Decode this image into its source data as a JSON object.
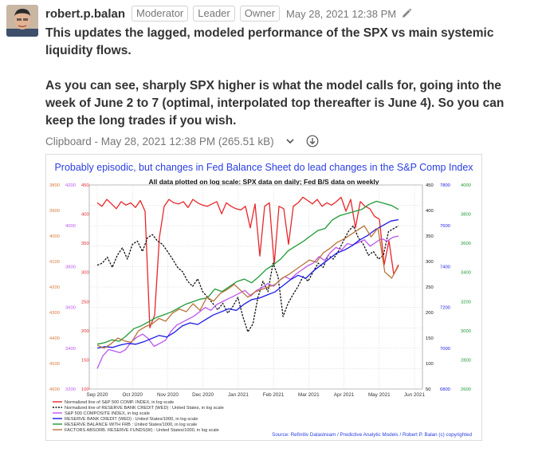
{
  "message": {
    "sender": "robert.p.balan",
    "badges": [
      "Moderator",
      "Leader",
      "Owner"
    ],
    "timestamp": "May 28, 2021 12:38 PM",
    "edit_icon": "pencil-icon",
    "paragraphs": [
      "This updates the lagged, modeled performance of the SPX vs main systemic liquidity flows.",
      "As you can see, sharply SPX higher is what the model calls for, going into the week of June 2 to 7 (optimal, interpolated top thereafter is June 4). So you can keep the long trades if you wish."
    ]
  },
  "attachment": {
    "label": "Clipboard - May 28, 2021 12:38 PM (265.51 kB)",
    "expand_icon": "chevron-down-icon",
    "download_icon": "download-icon"
  },
  "chart_data": {
    "type": "line",
    "title": "Probably episodic, but changes in Fed Balance Sheet do lead changes in the S&P Comp Index",
    "subtitle": "All data plotted on log scale: SPX data on daily; Fed B/S data on weekly",
    "x_tick_labels": [
      "Sep 2020",
      "Oct 2020",
      "Nov 2020",
      "Dec 2020",
      "Jan 2021",
      "Feb 2021",
      "Mar 2021",
      "Apr 2021",
      "May 2021",
      "Jun 2021"
    ],
    "left_axis_1": [
      "3800",
      "3900",
      "4000",
      "4100",
      "4200",
      "4300",
      "4400",
      "4500",
      "4600"
    ],
    "left_axis_2": [
      "450",
      "400",
      "350",
      "300",
      "250",
      "200",
      "150",
      "100"
    ],
    "left_axis_3": [
      "4200",
      "4000",
      "3800",
      "3600",
      "3400",
      "3200"
    ],
    "right_axis_1": [
      "450",
      "400",
      "350",
      "300",
      "250",
      "200",
      "150",
      "100",
      "50"
    ],
    "right_axis_2": [
      "7800",
      "7600",
      "7400",
      "7200",
      "7000",
      "6800"
    ],
    "right_axis_3": [
      "4000",
      "3800",
      "3600",
      "3400",
      "3200",
      "3000",
      "2800",
      "2600"
    ],
    "legend": [
      "Normalized line of S&P 500 COMP. INDEX, in log scale",
      "Normalized line of RESERVE BANK CREDIT (WED) : United States, in log scale",
      "S&P 500 COMPOSITE INDEX, in log scale",
      "RESERVE BANK CREDIT (WED) : United States/1000, in log scale",
      "RESERVE BALANCE WITH FRB : United States/1000, in log scale",
      "FACTORS ABSORB. RESERVE FUNDS(W) : United States/1000, in log scale"
    ],
    "source": "Source: Refinitiv Datastream / Predictive Analytic Models / Robert P. Balan (c) copyrighted",
    "series": [
      {
        "name": "Normalized line of S&P 500 COMP. INDEX, in log scale",
        "color": "#e8262b",
        "values": [
          395,
          380,
          410,
          390,
          370,
          400,
          385,
          395,
          375,
          405,
          360,
          100,
          115,
          270,
          380,
          410,
          395,
          390,
          400,
          375,
          410,
          395,
          385,
          380,
          390,
          400,
          350,
          395,
          380,
          370,
          365,
          380,
          300,
          390,
          220,
          380,
          395,
          200,
          380,
          370,
          250,
          380,
          395,
          420,
          405,
          390,
          410,
          380,
          395,
          385,
          400,
          420,
          360,
          410,
          300,
          400,
          380,
          370,
          340,
          330,
          200,
          260,
          180,
          200
        ]
      },
      {
        "name": "Normalized line of RESERVE BANK CREDIT (WED) : United States, in log scale",
        "color": "#111111",
        "values": [
          235,
          240,
          255,
          230,
          260,
          280,
          250,
          290,
          300,
          270,
          310,
          320,
          300,
          290,
          270,
          250,
          230,
          220,
          200,
          190,
          205,
          180,
          170,
          160,
          150,
          160,
          145,
          155,
          170,
          140,
          120,
          130,
          170,
          200,
          180,
          240,
          210,
          140,
          160,
          175,
          190,
          210,
          200,
          220,
          240,
          230,
          260,
          250,
          270,
          300,
          330,
          350,
          310,
          290,
          260,
          270,
          250,
          260,
          330,
          340,
          350
        ]
      },
      {
        "name": "S&P 500 COMPOSITE INDEX, in log scale",
        "color": "#bb55ee",
        "values": [
          3280,
          3360,
          3400,
          3390,
          3380,
          3400,
          3450,
          3480,
          3500,
          3470,
          3420,
          3440,
          3460,
          3520,
          3560,
          3580,
          3600,
          3620,
          3650,
          3680,
          3660,
          3700,
          3720,
          3740,
          3760,
          3780,
          3800,
          3760,
          3800,
          3820,
          3850,
          3830,
          3870,
          3900,
          3880,
          3920,
          3950,
          3980,
          4000,
          4050,
          4020,
          4080,
          4120,
          4100,
          4150,
          4140,
          4160,
          4180,
          4130,
          4160,
          4190,
          4170,
          4200,
          4210
        ]
      },
      {
        "name": "RESERVE BANK CREDIT (WED) : United States/1000, in log scale",
        "color": "#1a1ae6",
        "values": [
          6980,
          6990,
          6985,
          7000,
          7010,
          7005,
          7020,
          7040,
          7060,
          7050,
          7080,
          7120,
          7140,
          7130,
          7160,
          7190,
          7210,
          7230,
          7220,
          7260,
          7290,
          7300,
          7320,
          7340,
          7380,
          7420,
          7450,
          7430,
          7480,
          7520,
          7560,
          7600,
          7620,
          7650,
          7690,
          7720,
          7760,
          7790,
          7820,
          7830
        ]
      },
      {
        "name": "RESERVE BALANCE WITH FRB : United States/1000, in log scale",
        "color": "#1f9a35",
        "values": [
          2790,
          2800,
          2820,
          2810,
          2850,
          2900,
          2920,
          2950,
          2980,
          3000,
          3020,
          3050,
          3080,
          3100,
          3120,
          3130,
          3200,
          3180,
          3220,
          3260,
          3280,
          3250,
          3300,
          3360,
          3400,
          3450,
          3520,
          3560,
          3600,
          3650,
          3700,
          3720,
          3800,
          3840,
          3860,
          3880,
          3900,
          3950,
          3980,
          3960,
          3940,
          3900
        ]
      },
      {
        "name": "FACTORS ABSORB. RESERVE FUNDS(W) : United States/1000, in log scale",
        "color": "#b8733a",
        "values": [
          2850,
          2830,
          2860,
          2900,
          2880,
          2870,
          2950,
          2980,
          3000,
          3040,
          3020,
          3080,
          3110,
          3090,
          3150,
          3100,
          3200,
          3170,
          3230,
          3260,
          3300,
          3250,
          3200,
          3240,
          3260,
          3280,
          3300,
          3350,
          3380,
          3420,
          3460,
          3500,
          3480,
          3560,
          3600,
          3650,
          3680,
          3720,
          3760,
          3800,
          3700,
          3780,
          3400,
          3350,
          3450
        ]
      }
    ]
  }
}
